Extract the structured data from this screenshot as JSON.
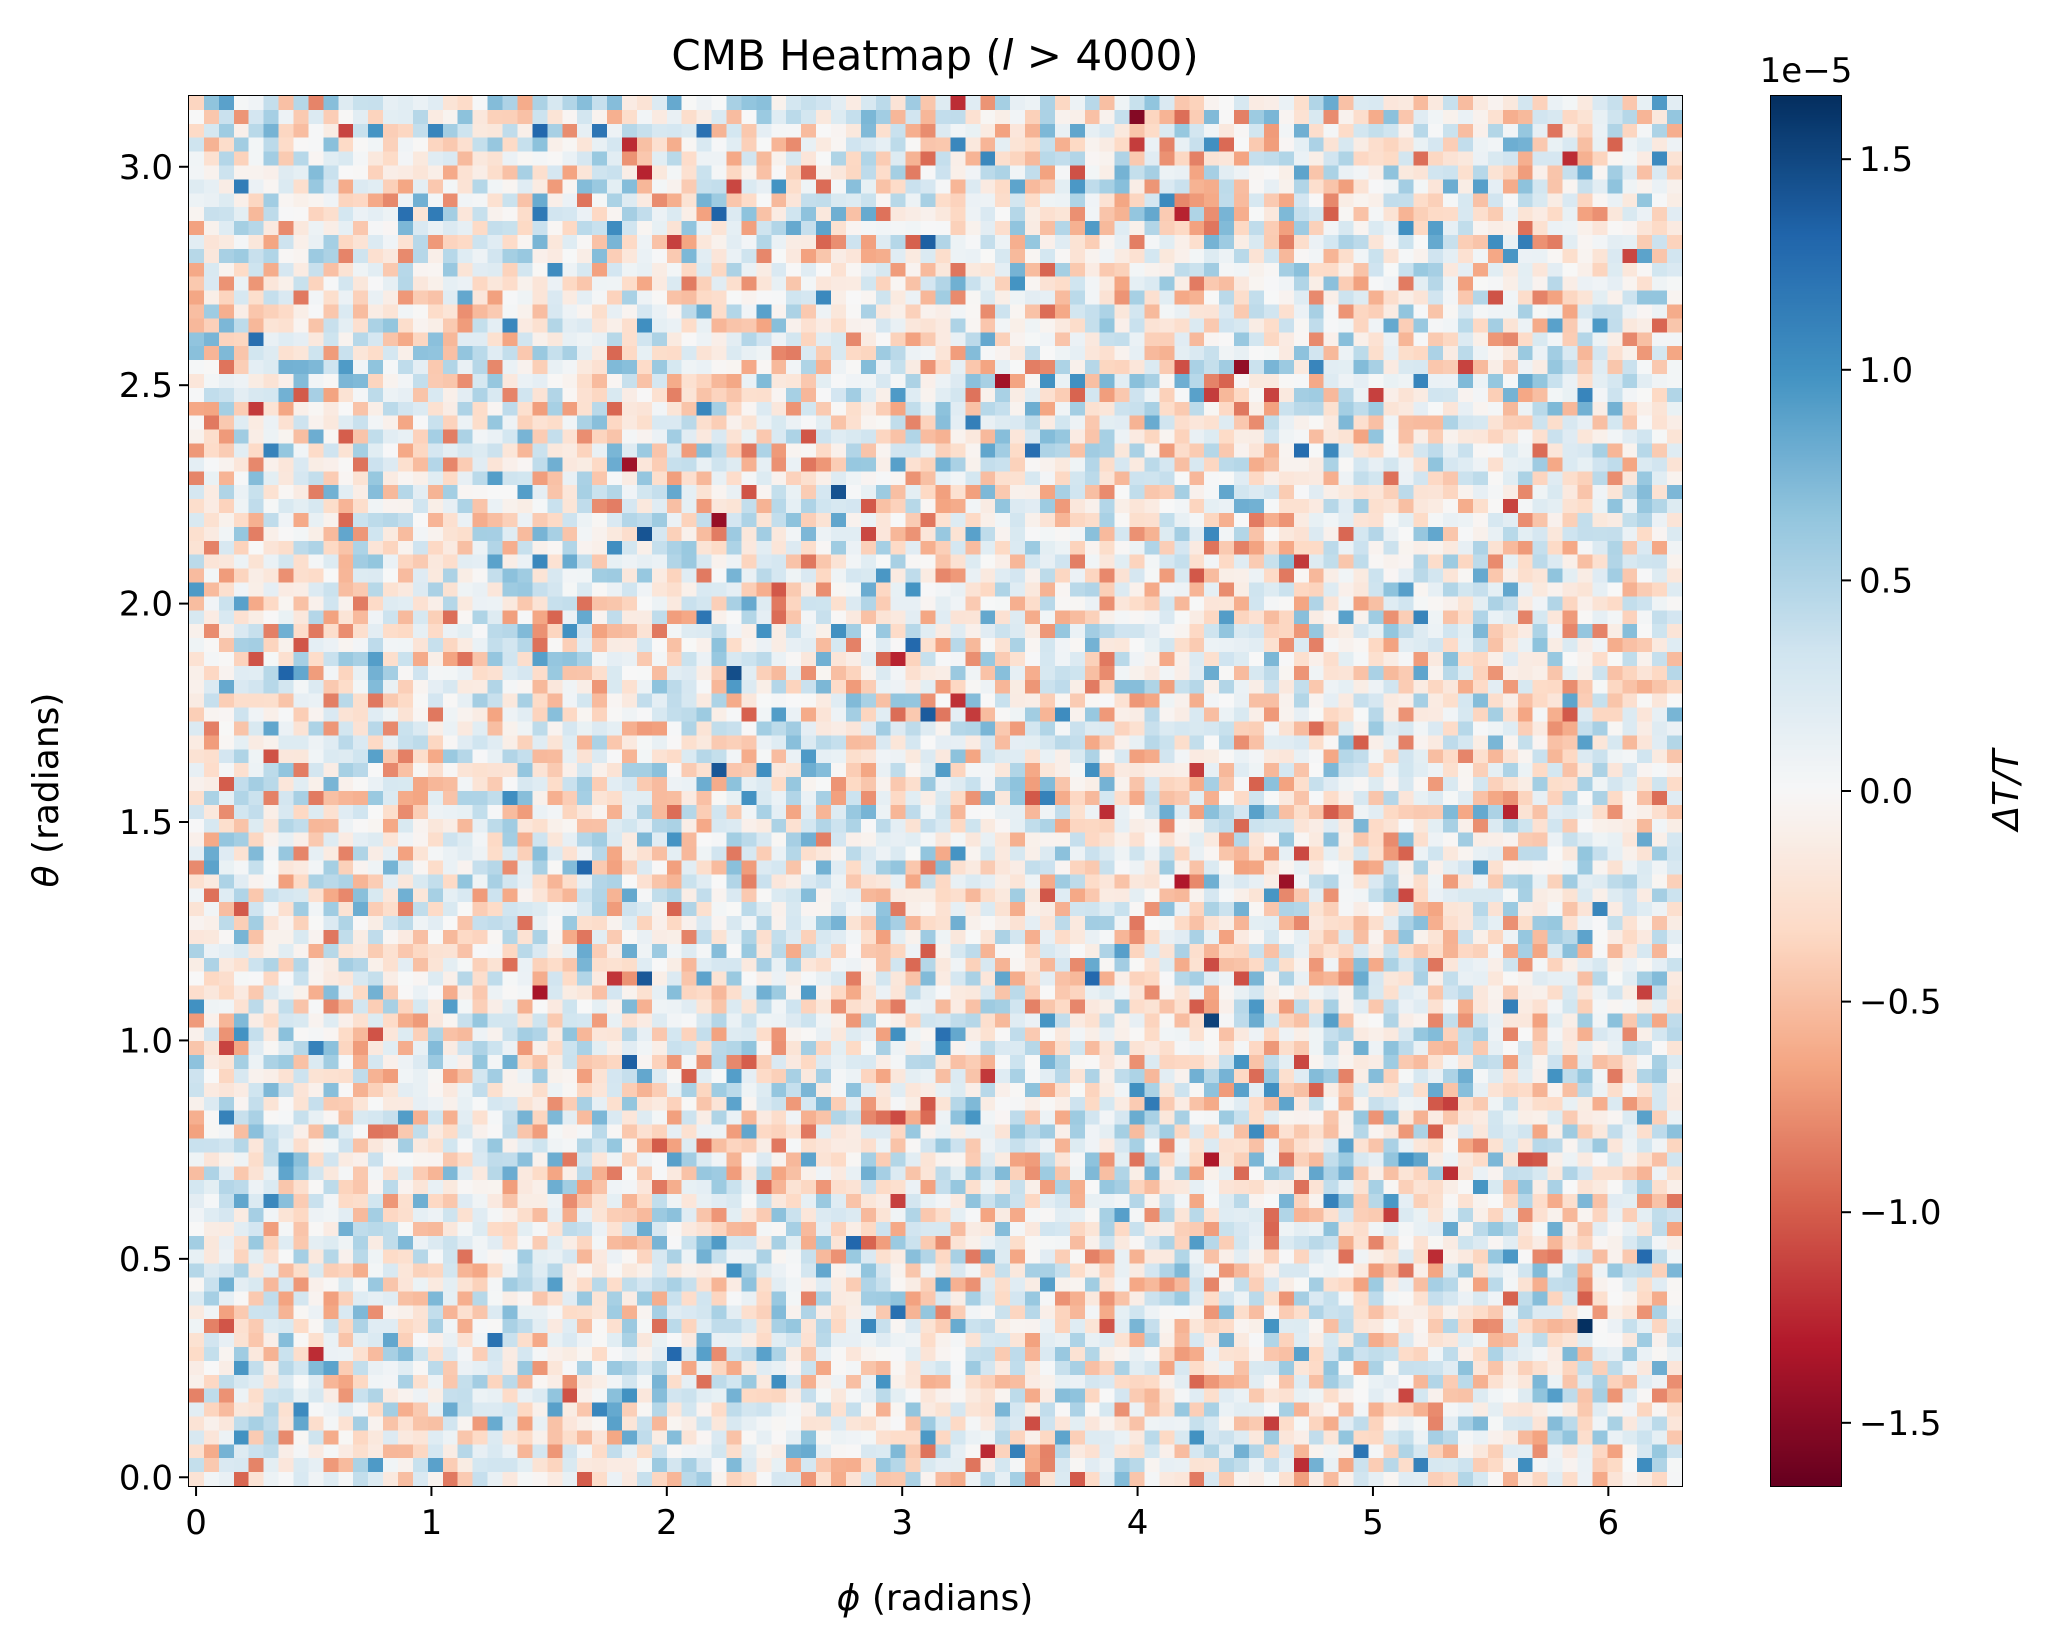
{
  "chart_data": {
    "type": "heatmap",
    "title_prefix": "CMB Heatmap (",
    "title_var": "l",
    "title_suffix": " > 4000)",
    "xlabel_symbol": "ϕ",
    "xlabel_text": " (radians)",
    "ylabel_symbol": "θ",
    "ylabel_text": " (radians)",
    "xlim": [
      -0.03,
      6.313
    ],
    "ylim": [
      -0.02,
      3.162
    ],
    "x_ticks": [
      0,
      1,
      2,
      3,
      4,
      5,
      6
    ],
    "x_tick_labels": [
      "0",
      "1",
      "2",
      "3",
      "4",
      "5",
      "6"
    ],
    "y_ticks": [
      0.0,
      0.5,
      1.0,
      1.5,
      2.0,
      2.5,
      3.0
    ],
    "y_tick_labels": [
      "0.0",
      "0.5",
      "1.0",
      "1.5",
      "2.0",
      "2.5",
      "3.0"
    ],
    "grid": {
      "cols": 100,
      "rows": 100
    },
    "colormap": "RdBu",
    "colorbar": {
      "label": "ΔT/T",
      "scale_label": "1e−5",
      "vmin": -1.65,
      "vmax": 1.65,
      "ticks": [
        -1.5,
        -1.0,
        -0.5,
        0.0,
        0.5,
        1.0,
        1.5
      ],
      "tick_labels": [
        "−1.5",
        "−1.0",
        "−0.5",
        "0.0",
        "0.5",
        "1.0",
        "1.5"
      ]
    }
  }
}
